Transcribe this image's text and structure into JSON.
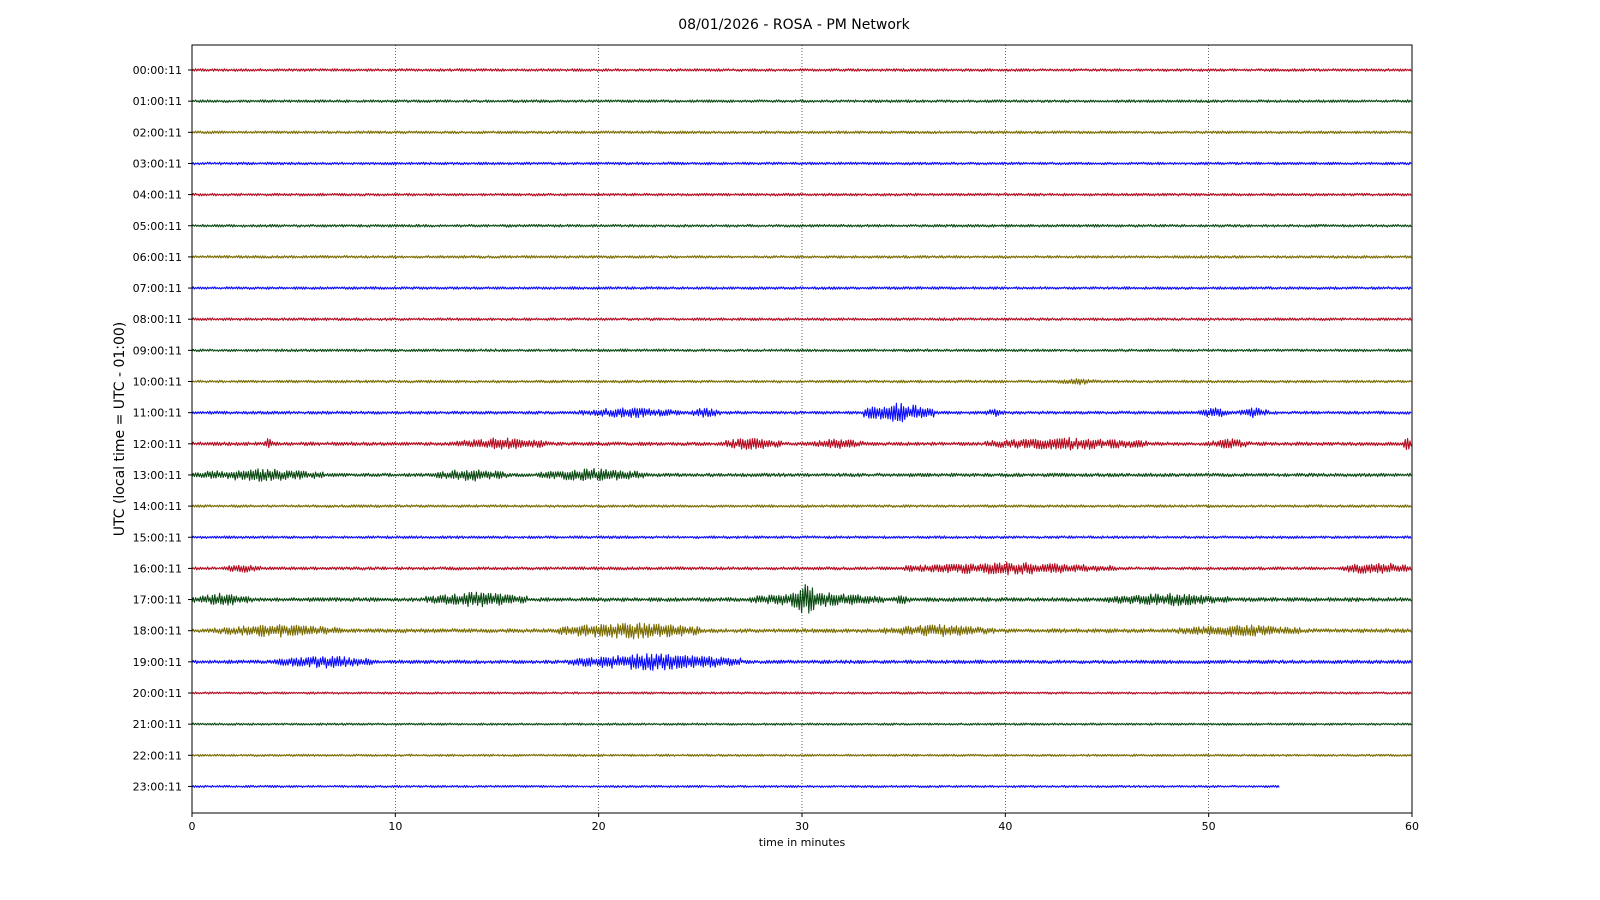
{
  "chart_data": {
    "type": "line",
    "title": "08/01/2026 - ROSA - PM Network",
    "xlabel": "time in minutes",
    "ylabel": "UTC (local time = UTC - 01:00)",
    "xlim": [
      0,
      60
    ],
    "x_ticks": [
      0,
      10,
      20,
      30,
      40,
      50,
      60
    ],
    "grid": "vertical dotted lines at each x tick",
    "colors": [
      "#b40a1e",
      "#0a4a12",
      "#7a6c00",
      "#0a0aff"
    ],
    "series": [
      {
        "label": "00:00:11",
        "end": 60,
        "noise": 0.6,
        "bursts": []
      },
      {
        "label": "01:00:11",
        "end": 60,
        "noise": 0.6,
        "bursts": []
      },
      {
        "label": "02:00:11",
        "end": 60,
        "noise": 0.6,
        "bursts": []
      },
      {
        "label": "03:00:11",
        "end": 60,
        "noise": 0.6,
        "bursts": []
      },
      {
        "label": "04:00:11",
        "end": 60,
        "noise": 0.6,
        "bursts": []
      },
      {
        "label": "05:00:11",
        "end": 60,
        "noise": 0.6,
        "bursts": []
      },
      {
        "label": "06:00:11",
        "end": 60,
        "noise": 0.6,
        "bursts": []
      },
      {
        "label": "07:00:11",
        "end": 60,
        "noise": 0.6,
        "bursts": []
      },
      {
        "label": "08:00:11",
        "end": 60,
        "noise": 0.6,
        "bursts": []
      },
      {
        "label": "09:00:11",
        "end": 60,
        "noise": 0.6,
        "bursts": []
      },
      {
        "label": "10:00:11",
        "end": 60,
        "noise": 0.6,
        "bursts": [
          [
            42.5,
            44.5,
            1.6
          ]
        ]
      },
      {
        "label": "11:00:11",
        "end": 60,
        "noise": 0.7,
        "bursts": [
          [
            19,
            24,
            2.5
          ],
          [
            24.5,
            26,
            2.5
          ],
          [
            33,
            36.5,
            4.5
          ],
          [
            39,
            40,
            2
          ],
          [
            49.5,
            51,
            2.5
          ],
          [
            51.5,
            53,
            2.5
          ]
        ]
      },
      {
        "label": "12:00:11",
        "end": 60,
        "noise": 0.8,
        "bursts": [
          [
            3.5,
            4,
            3
          ],
          [
            13,
            17.5,
            3
          ],
          [
            26,
            29,
            3
          ],
          [
            30.5,
            33,
            2.5
          ],
          [
            39,
            47,
            3
          ],
          [
            50,
            52,
            2.5
          ],
          [
            59.5,
            60,
            3
          ]
        ]
      },
      {
        "label": "13:00:11",
        "end": 60,
        "noise": 0.8,
        "bursts": [
          [
            0,
            6.5,
            3
          ],
          [
            12,
            15.5,
            3
          ],
          [
            17,
            22.5,
            3
          ]
        ]
      },
      {
        "label": "14:00:11",
        "end": 60,
        "noise": 0.6,
        "bursts": []
      },
      {
        "label": "15:00:11",
        "end": 60,
        "noise": 0.6,
        "bursts": []
      },
      {
        "label": "16:00:11",
        "end": 60,
        "noise": 0.7,
        "bursts": [
          [
            1.5,
            3.5,
            2
          ],
          [
            35,
            45.5,
            3
          ],
          [
            56.5,
            60,
            3
          ]
        ]
      },
      {
        "label": "17:00:11",
        "end": 60,
        "noise": 0.9,
        "bursts": [
          [
            0,
            3,
            3
          ],
          [
            11.5,
            16.5,
            3.5
          ],
          [
            27.5,
            34,
            3.5
          ],
          [
            29.5,
            30.8,
            8
          ],
          [
            34.5,
            35.3,
            2.5
          ],
          [
            45,
            51,
            3
          ]
        ]
      },
      {
        "label": "18:00:11",
        "end": 60,
        "noise": 0.9,
        "bursts": [
          [
            1,
            7.5,
            3
          ],
          [
            18,
            25,
            4
          ],
          [
            34,
            39.5,
            3
          ],
          [
            48.5,
            54.5,
            3
          ]
        ]
      },
      {
        "label": "19:00:11",
        "end": 60,
        "noise": 0.8,
        "bursts": [
          [
            4,
            9,
            3
          ],
          [
            18.5,
            27,
            4
          ]
        ]
      },
      {
        "label": "20:00:11",
        "end": 60,
        "noise": 0.5,
        "bursts": []
      },
      {
        "label": "21:00:11",
        "end": 60,
        "noise": 0.5,
        "bursts": []
      },
      {
        "label": "22:00:11",
        "end": 60,
        "noise": 0.5,
        "bursts": []
      },
      {
        "label": "23:00:11",
        "end": 53.5,
        "noise": 0.5,
        "bursts": []
      }
    ]
  }
}
